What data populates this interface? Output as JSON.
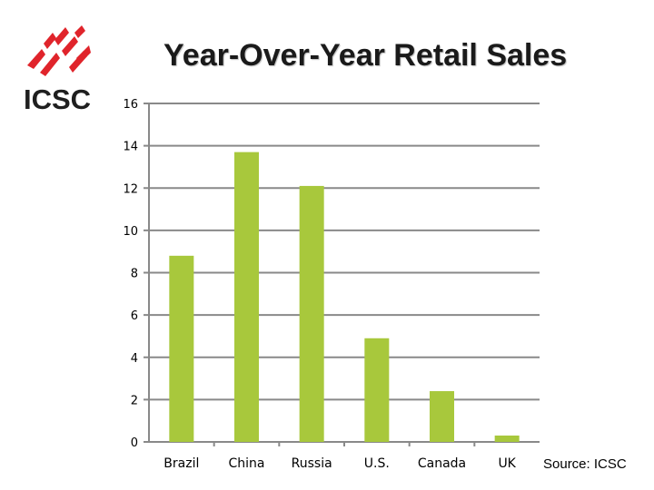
{
  "logo_text": "ICSC",
  "colors": {
    "bar": "#a8c83c",
    "grid": "#898989",
    "logo_red": "#e0242b",
    "logo_text": "#1f1f1f"
  },
  "chart_data": {
    "type": "bar",
    "title": "Year-Over-Year Retail Sales",
    "xlabel": "",
    "ylabel": "",
    "categories": [
      "Brazil",
      "China",
      "Russia",
      "U.S.",
      "Canada",
      "UK"
    ],
    "values": [
      8.8,
      13.7,
      12.1,
      4.9,
      2.4,
      0.3
    ],
    "ylim": [
      0,
      16
    ],
    "yticks": [
      "0",
      "2",
      "4",
      "6",
      "8",
      "10",
      "12",
      "14",
      "16"
    ],
    "grid": true,
    "source": "Source: ICSC"
  }
}
